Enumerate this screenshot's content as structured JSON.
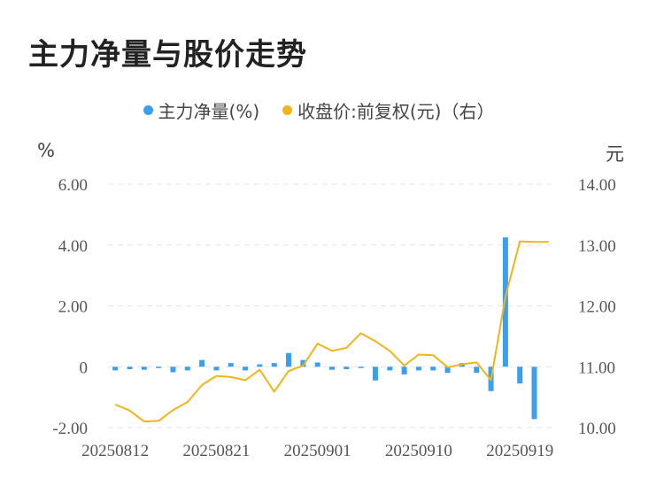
{
  "title": "主力净量与股价走势",
  "legend": {
    "bar_label": "主力净量(%)",
    "line_label": "收盘价:前复权(元)（右）"
  },
  "units": {
    "left": "%",
    "right": "元"
  },
  "colors": {
    "bar": "#3a9ff0",
    "line": "#f2b418",
    "grid": "#e3e3e3"
  },
  "chart_data": {
    "type": "bar+line",
    "x": [
      "20250812",
      "20250813",
      "20250814",
      "20250815",
      "20250818",
      "20250819",
      "20250820",
      "20250821",
      "20250822",
      "20250825",
      "20250826",
      "20250827",
      "20250828",
      "20250829",
      "20250901",
      "20250902",
      "20250903",
      "20250904",
      "20250905",
      "20250908",
      "20250909",
      "20250910",
      "20250911",
      "20250912",
      "20250915",
      "20250916",
      "20250917",
      "20250918",
      "20250919",
      "20250922",
      "20250923"
    ],
    "x_tick_labels": [
      "20250812",
      "20250821",
      "20250901",
      "20250910",
      "20250919"
    ],
    "series": [
      {
        "name": "主力净量(%)",
        "axis": "left",
        "type": "bar",
        "values": [
          -0.12,
          -0.08,
          -0.1,
          -0.03,
          -0.18,
          -0.12,
          0.22,
          -0.12,
          0.12,
          -0.12,
          0.08,
          0.12,
          0.45,
          0.22,
          0.14,
          -0.1,
          -0.08,
          -0.03,
          -0.45,
          -0.12,
          -0.25,
          -0.12,
          -0.12,
          -0.2,
          0.12,
          -0.2,
          -0.8,
          4.25,
          -0.55,
          -1.72,
          0
        ]
      },
      {
        "name": "收盘价:前复权(元)（右）",
        "axis": "right",
        "type": "line",
        "values": [
          10.38,
          10.28,
          10.1,
          10.11,
          10.29,
          10.42,
          10.7,
          10.85,
          10.83,
          10.78,
          10.95,
          10.59,
          10.93,
          11.02,
          11.38,
          11.26,
          11.31,
          11.55,
          11.42,
          11.26,
          11.02,
          11.2,
          11.19,
          10.99,
          11.04,
          11.07,
          10.78,
          12.15,
          13.06,
          13.05,
          13.05
        ]
      }
    ],
    "y_left": {
      "range": [
        -2,
        6
      ],
      "ticks": [
        "6.00",
        "4.00",
        "2.00",
        "0",
        "-2.00"
      ]
    },
    "y_right": {
      "range": [
        10,
        14
      ],
      "ticks": [
        "14.00",
        "13.00",
        "12.00",
        "11.00",
        "10.00"
      ]
    },
    "grid": true,
    "legend_position": "top"
  }
}
